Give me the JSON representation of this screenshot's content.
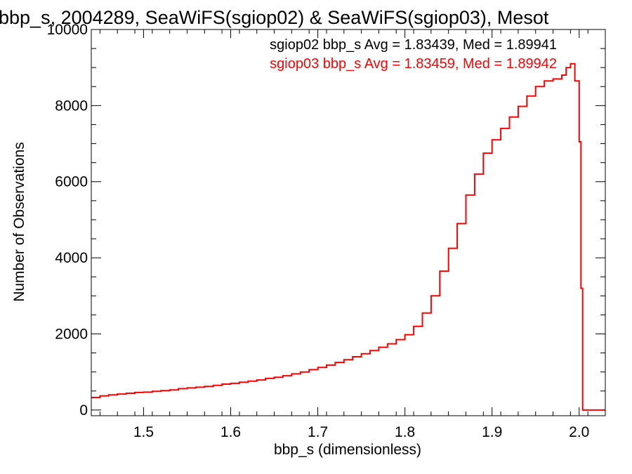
{
  "chart_data": {
    "type": "histogram-step",
    "title": "bbp_s, 2004289, SeaWiFS(sgiop02) & SeaWiFS(sgiop03), Mesot",
    "xlabel": "bbp_s (dimensionless)",
    "ylabel": "Number of Observations",
    "xlim": [
      1.44,
      2.03
    ],
    "ylim": [
      -150,
      10000
    ],
    "x_ticks": [
      1.5,
      1.6,
      1.7,
      1.8,
      1.9,
      2.0
    ],
    "x_tick_labels": [
      "1.5",
      "1.6",
      "1.7",
      "1.8",
      "1.9",
      "2.0"
    ],
    "y_ticks": [
      0,
      2000,
      4000,
      6000,
      8000,
      10000
    ],
    "y_tick_labels": [
      "0",
      "2000",
      "4000",
      "6000",
      "8000",
      "10000"
    ],
    "grid": false,
    "annotations": [
      {
        "text": "sgiop02 bbp_s Avg = 1.83439, Med = 1.89941",
        "color": "#000000"
      },
      {
        "text": "sgiop03 bbp_s Avg = 1.83459, Med = 1.89942",
        "color": "#ff0000"
      }
    ],
    "series": [
      {
        "name": "sgiop03",
        "color": "#ff0000",
        "x": [
          1.44,
          1.45,
          1.46,
          1.47,
          1.48,
          1.49,
          1.5,
          1.51,
          1.52,
          1.53,
          1.54,
          1.55,
          1.56,
          1.57,
          1.58,
          1.59,
          1.6,
          1.61,
          1.62,
          1.63,
          1.64,
          1.65,
          1.66,
          1.67,
          1.68,
          1.69,
          1.7,
          1.71,
          1.72,
          1.73,
          1.74,
          1.75,
          1.76,
          1.77,
          1.78,
          1.79,
          1.8,
          1.81,
          1.82,
          1.83,
          1.84,
          1.85,
          1.86,
          1.87,
          1.88,
          1.89,
          1.9,
          1.91,
          1.92,
          1.93,
          1.94,
          1.95,
          1.96,
          1.97,
          1.98,
          1.985,
          1.99,
          1.995,
          2.0,
          2.002,
          2.004,
          2.01,
          2.02,
          2.03
        ],
        "y": [
          330,
          370,
          400,
          420,
          440,
          460,
          470,
          490,
          510,
          530,
          560,
          580,
          600,
          620,
          650,
          680,
          700,
          730,
          760,
          790,
          830,
          860,
          900,
          950,
          1000,
          1060,
          1120,
          1180,
          1250,
          1320,
          1400,
          1480,
          1560,
          1650,
          1740,
          1850,
          1980,
          2200,
          2550,
          3000,
          3650,
          4250,
          4900,
          5650,
          6200,
          6750,
          7100,
          7400,
          7700,
          7980,
          8250,
          8500,
          8650,
          8700,
          8800,
          9000,
          9100,
          8650,
          7050,
          3200,
          0,
          0,
          0,
          0
        ]
      }
    ]
  }
}
